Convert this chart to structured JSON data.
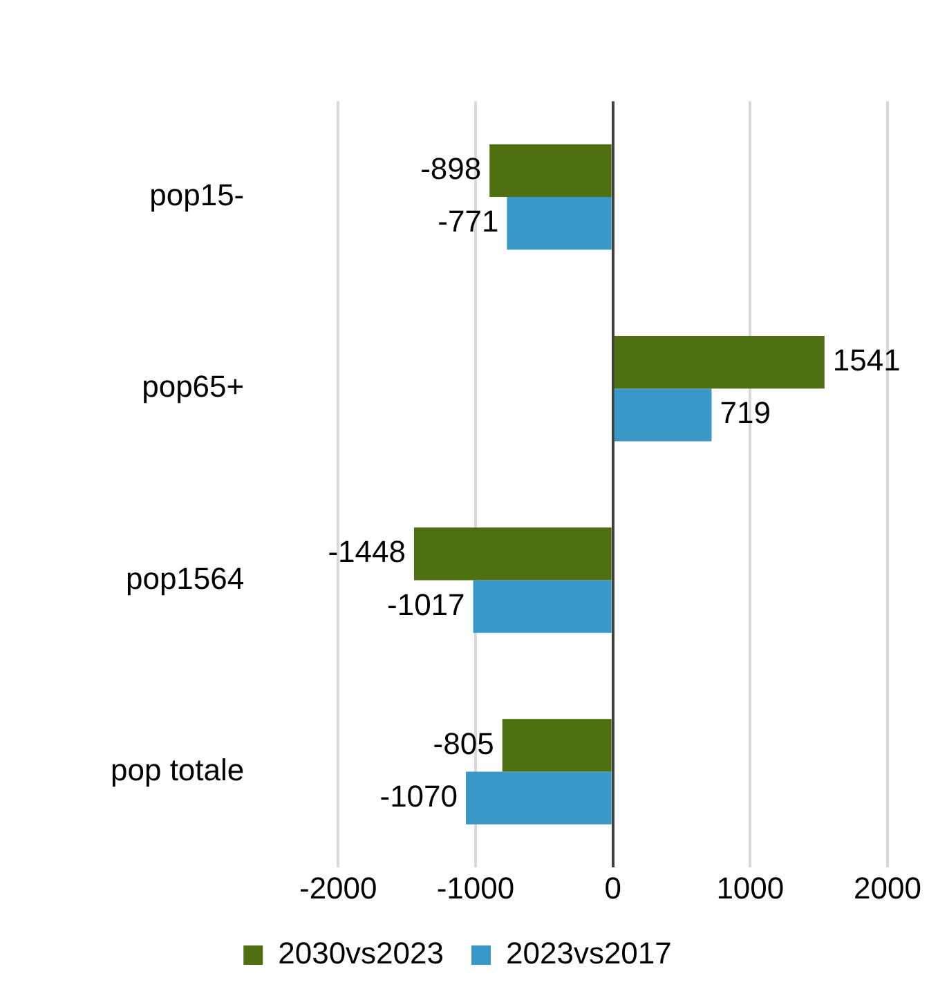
{
  "chart_data": {
    "type": "bar",
    "orientation": "horizontal",
    "categories": [
      "pop15-",
      "pop65+",
      "pop1564",
      "pop totale"
    ],
    "series": [
      {
        "name": "2030vs2023",
        "color": "#4e7011",
        "values": [
          -898,
          1541,
          -1448,
          -805
        ]
      },
      {
        "name": "2023vs2017",
        "color": "#3a98c8",
        "values": [
          -771,
          719,
          -1017,
          -1070
        ]
      }
    ],
    "xlim": [
      -2000,
      2000
    ],
    "xticks": [
      -2000,
      -1000,
      0,
      1000,
      2000
    ],
    "grid": "x",
    "legend": "bottom",
    "data_labels": true
  }
}
